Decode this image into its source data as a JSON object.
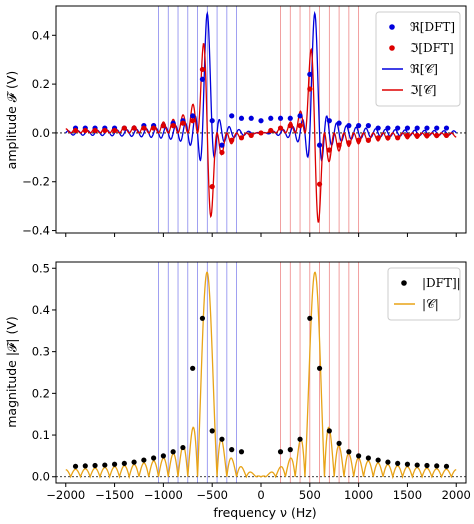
{
  "chart_data": [
    {
      "type": "line",
      "panel": "top",
      "ylabel": "amplitude 𝓕 (V)",
      "xlim": [
        -2100,
        2100
      ],
      "ylim": [
        -0.41,
        0.52
      ],
      "xticks": [
        -2000,
        -1500,
        -1000,
        -500,
        0,
        500,
        1000,
        1500,
        2000
      ],
      "yticks": [
        -0.4,
        -0.2,
        0.0,
        0.2,
        0.4
      ],
      "ytick_labels": [
        "−0.4",
        "−0.2",
        "0.0",
        "0.2",
        "0.4"
      ],
      "legend": {
        "placement": "top-right",
        "entries": [
          "ℜ[DFT]",
          "ℑ[DFT]",
          "ℜ[𝒞]",
          "ℑ[𝒞]"
        ]
      },
      "colors": {
        "re": "#0000dd",
        "im": "#dd0000",
        "re_vline": "#8888ee",
        "im_vline": "#ee8888"
      },
      "vlines_blue": [
        -1050,
        -950,
        -850,
        -750,
        -650,
        -550,
        -450,
        -350,
        -250
      ],
      "vlines_red": [
        200,
        300,
        400,
        500,
        600,
        700,
        800,
        900,
        1000
      ],
      "series": [
        {
          "name": "ℜ[DFT]",
          "kind": "points",
          "x": [
            -1900,
            -1800,
            -1700,
            -1600,
            -1500,
            -1400,
            -1300,
            -1200,
            -1100,
            -1000,
            -900,
            -800,
            -700,
            -600,
            -500,
            -400,
            -300,
            -200,
            -100,
            0,
            100,
            200,
            300,
            400,
            500,
            600,
            700,
            800,
            900,
            1000,
            1100,
            1200,
            1300,
            1400,
            1500,
            1600,
            1700,
            1800,
            1900
          ],
          "y": [
            0.02,
            0.02,
            0.02,
            0.02,
            0.02,
            0.02,
            0.02,
            0.03,
            0.03,
            0.03,
            0.04,
            0.05,
            0.07,
            0.22,
            0.05,
            -0.05,
            0.07,
            0.06,
            0.06,
            0.05,
            0.06,
            0.06,
            0.06,
            0.07,
            0.24,
            -0.05,
            0.05,
            0.04,
            0.03,
            0.03,
            0.03,
            0.02,
            0.02,
            0.02,
            0.02,
            0.02,
            0.02,
            0.02,
            0.02
          ]
        },
        {
          "name": "ℑ[DFT]",
          "kind": "points",
          "x": [
            -1900,
            -1800,
            -1700,
            -1600,
            -1500,
            -1400,
            -1300,
            -1200,
            -1100,
            -1000,
            -900,
            -800,
            -700,
            -600,
            -500,
            -400,
            -300,
            -200,
            -100,
            0,
            100,
            200,
            300,
            400,
            500,
            600,
            700,
            800,
            900,
            1000,
            1100,
            1200,
            1300,
            1400,
            1500,
            1600,
            1700,
            1800,
            1900
          ],
          "y": [
            0.01,
            0.01,
            0.01,
            0.01,
            0.01,
            0.02,
            0.02,
            0.02,
            0.02,
            0.03,
            0.03,
            0.04,
            0.05,
            0.26,
            -0.22,
            -0.08,
            -0.03,
            -0.02,
            -0.01,
            0.0,
            0.01,
            0.02,
            0.03,
            0.03,
            0.18,
            -0.21,
            -0.07,
            -0.05,
            -0.04,
            -0.03,
            -0.03,
            -0.02,
            -0.02,
            -0.02,
            -0.01,
            -0.01,
            -0.01,
            -0.01,
            -0.01
          ]
        },
        {
          "name": "ℜ[𝒞]",
          "kind": "curve"
        },
        {
          "name": "ℑ[𝒞]",
          "kind": "curve"
        }
      ]
    },
    {
      "type": "line",
      "panel": "bottom",
      "xlabel": "frequency ν (Hz)",
      "ylabel": "magnitude |𝓕| (V)",
      "xlim": [
        -2100,
        2100
      ],
      "ylim": [
        -0.015,
        0.515
      ],
      "xticks": [
        -2000,
        -1500,
        -1000,
        -500,
        0,
        500,
        1000,
        1500,
        2000
      ],
      "xtick_labels": [
        "−2000",
        "−1500",
        "−1000",
        "−500",
        "0",
        "500",
        "1000",
        "1500",
        "2000"
      ],
      "yticks": [
        0.0,
        0.1,
        0.2,
        0.3,
        0.4,
        0.5
      ],
      "ytick_labels": [
        "0.0",
        "0.1",
        "0.2",
        "0.3",
        "0.4",
        "0.5"
      ],
      "legend": {
        "placement": "top-right",
        "entries": [
          "|DFT]|",
          "|𝒞|"
        ]
      },
      "colors": {
        "dft": "#000000",
        "mag": "#e8a317"
      },
      "series": [
        {
          "name": "|DFT]|",
          "kind": "points",
          "x": [
            -1900,
            -1800,
            -1700,
            -1600,
            -1500,
            -1400,
            -1300,
            -1200,
            -1100,
            -1000,
            -900,
            -800,
            -700,
            -600,
            -500,
            -400,
            -300,
            -200,
            200,
            300,
            400,
            500,
            600,
            700,
            800,
            900,
            1000,
            1100,
            1200,
            1300,
            1400,
            1500,
            1600,
            1700,
            1800,
            1900
          ],
          "y": [
            0.025,
            0.026,
            0.027,
            0.028,
            0.03,
            0.032,
            0.035,
            0.04,
            0.045,
            0.05,
            0.06,
            0.07,
            0.26,
            0.38,
            0.11,
            0.09,
            0.065,
            0.06,
            0.06,
            0.065,
            0.09,
            0.38,
            0.26,
            0.11,
            0.08,
            0.06,
            0.05,
            0.045,
            0.04,
            0.035,
            0.032,
            0.03,
            0.028,
            0.027,
            0.026,
            0.025
          ]
        },
        {
          "name": "|𝒞|",
          "kind": "curve"
        }
      ]
    }
  ]
}
